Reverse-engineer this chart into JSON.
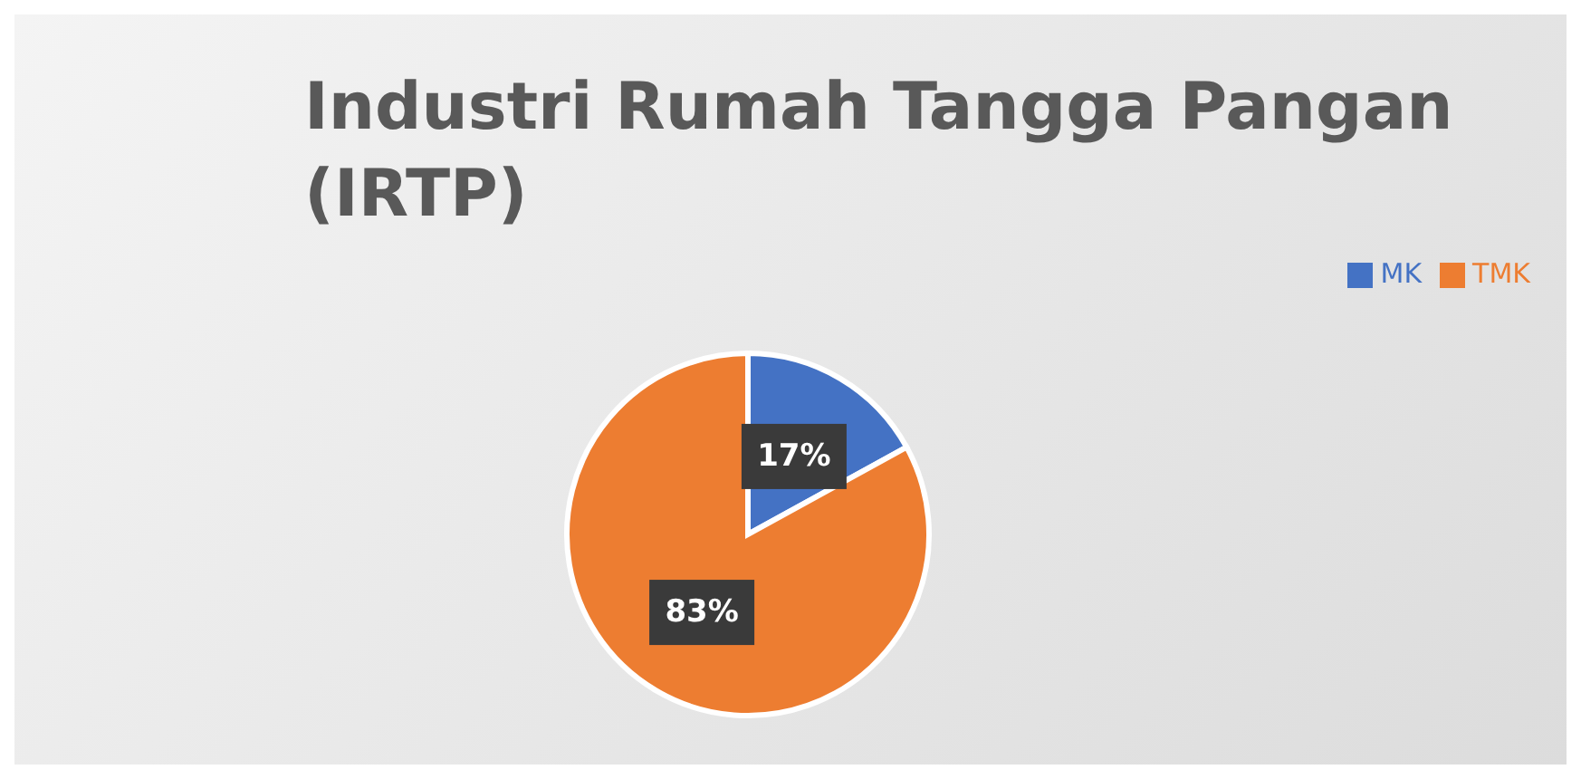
{
  "chart_data": {
    "type": "pie",
    "title": "Industri Rumah Tangga Pangan (IRTP)",
    "categories": [
      "MK",
      "TMK"
    ],
    "values": [
      17,
      83
    ],
    "colors": [
      "#4472c4",
      "#ed7d31"
    ],
    "value_labels": [
      "17%",
      "83%"
    ],
    "legend": "top right"
  }
}
